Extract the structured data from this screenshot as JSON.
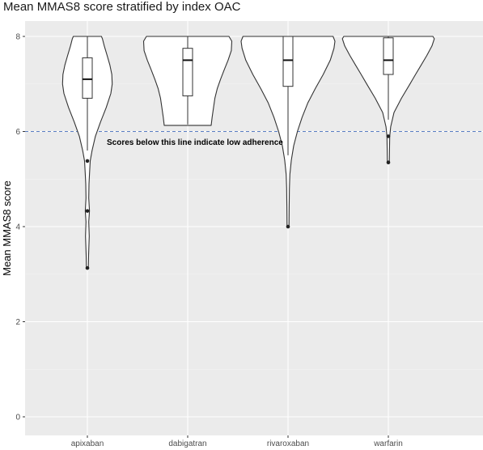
{
  "chart_data": {
    "type": "violin",
    "title": "Mean MMAS8 score stratified by index OAC",
    "xlabel": "",
    "ylabel": "Mean MMAS8 score",
    "categories": [
      "apixaban",
      "dabigatran",
      "rivaroxaban",
      "warfarin"
    ],
    "y_ticks": [
      0,
      2,
      4,
      6,
      8
    ],
    "ylim": [
      -0.3,
      8.25
    ],
    "grid": true,
    "reference_line": {
      "y": 6,
      "style": "dashed",
      "color": "#5b7fc4",
      "label": "Scores below this line indicate low adherence"
    },
    "boxes": [
      {
        "category": "apixaban",
        "min": 5.6,
        "q1": 6.7,
        "median": 7.1,
        "q3": 7.55,
        "max": 8.0
      },
      {
        "category": "dabigatran",
        "min": 6.15,
        "q1": 6.75,
        "median": 7.5,
        "q3": 7.75,
        "max": 8.0
      },
      {
        "category": "rivaroxaban",
        "min": 5.5,
        "q1": 6.95,
        "median": 7.5,
        "q3": 8.0,
        "max": 8.0
      },
      {
        "category": "warfarin",
        "min": 6.25,
        "q1": 7.2,
        "median": 7.5,
        "q3": 7.97,
        "max": 8.0
      }
    ],
    "outliers": [
      {
        "category": "apixaban",
        "values": [
          5.38,
          4.33,
          3.13
        ]
      },
      {
        "category": "dabigatran",
        "values": []
      },
      {
        "category": "rivaroxaban",
        "values": [
          4.0
        ]
      },
      {
        "category": "warfarin",
        "values": [
          5.9,
          5.35
        ]
      }
    ],
    "violins": [
      {
        "category": "apixaban",
        "y_range": [
          3.13,
          8.0
        ],
        "density": [
          [
            3.13,
            0.02
          ],
          [
            3.4,
            0.025
          ],
          [
            3.8,
            0.04
          ],
          [
            4.1,
            0.03
          ],
          [
            4.33,
            0.045
          ],
          [
            4.6,
            0.03
          ],
          [
            4.9,
            0.035
          ],
          [
            5.1,
            0.045
          ],
          [
            5.38,
            0.06
          ],
          [
            5.6,
            0.1
          ],
          [
            5.9,
            0.17
          ],
          [
            6.2,
            0.28
          ],
          [
            6.5,
            0.4
          ],
          [
            6.8,
            0.5
          ],
          [
            7.0,
            0.53
          ],
          [
            7.2,
            0.52
          ],
          [
            7.4,
            0.48
          ],
          [
            7.6,
            0.42
          ],
          [
            7.8,
            0.36
          ],
          [
            7.95,
            0.32
          ],
          [
            8.0,
            0.3
          ]
        ]
      },
      {
        "category": "dabigatran",
        "y_range": [
          6.13,
          8.0
        ],
        "density": [
          [
            6.13,
            0.5
          ],
          [
            6.3,
            0.52
          ],
          [
            6.5,
            0.55
          ],
          [
            6.7,
            0.58
          ],
          [
            6.9,
            0.63
          ],
          [
            7.1,
            0.7
          ],
          [
            7.3,
            0.78
          ],
          [
            7.5,
            0.86
          ],
          [
            7.7,
            0.93
          ],
          [
            7.9,
            0.94
          ],
          [
            8.0,
            0.88
          ]
        ]
      },
      {
        "category": "rivaroxaban",
        "y_range": [
          4.0,
          8.0
        ],
        "density": [
          [
            4.0,
            0.02
          ],
          [
            4.4,
            0.025
          ],
          [
            4.8,
            0.03
          ],
          [
            5.1,
            0.04
          ],
          [
            5.4,
            0.07
          ],
          [
            5.7,
            0.12
          ],
          [
            6.0,
            0.2
          ],
          [
            6.3,
            0.3
          ],
          [
            6.6,
            0.42
          ],
          [
            6.9,
            0.58
          ],
          [
            7.2,
            0.75
          ],
          [
            7.5,
            0.9
          ],
          [
            7.75,
            0.98
          ],
          [
            7.9,
            1.0
          ],
          [
            8.0,
            0.96
          ]
        ]
      },
      {
        "category": "warfarin",
        "y_range": [
          5.35,
          8.0
        ],
        "density": [
          [
            5.35,
            0.02
          ],
          [
            5.6,
            0.025
          ],
          [
            5.9,
            0.03
          ],
          [
            6.1,
            0.05
          ],
          [
            6.4,
            0.12
          ],
          [
            6.7,
            0.28
          ],
          [
            7.0,
            0.46
          ],
          [
            7.2,
            0.58
          ],
          [
            7.4,
            0.7
          ],
          [
            7.6,
            0.82
          ],
          [
            7.8,
            0.93
          ],
          [
            7.95,
            0.98
          ],
          [
            8.0,
            0.95
          ]
        ]
      }
    ]
  }
}
